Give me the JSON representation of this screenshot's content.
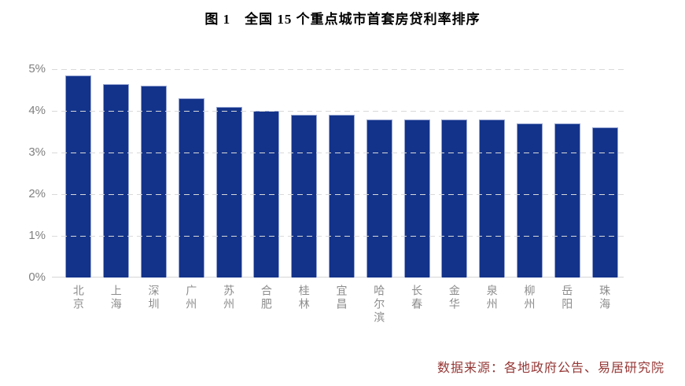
{
  "title": "图 1　全国 15 个重点城市首套房贷利率排序",
  "source_note": "数据来源：各地政府公告、易居研究院",
  "colors": {
    "bar_fill": "#13338a",
    "bar_border": "#96a5d2",
    "gridline": "#d9d9d9",
    "axis_text": "#808080",
    "title_text": "#000000",
    "source_text": "#953735"
  },
  "chart_data": {
    "type": "bar",
    "title": "图 1　全国 15 个重点城市首套房贷利率排序",
    "categories": [
      "北京",
      "上海",
      "深圳",
      "广州",
      "苏州",
      "合肥",
      "桂林",
      "宜昌",
      "哈尔滨",
      "长春",
      "金华",
      "泉州",
      "柳州",
      "岳阳",
      "珠海"
    ],
    "values": [
      4.85,
      4.65,
      4.6,
      4.3,
      4.1,
      4.0,
      3.9,
      3.9,
      3.8,
      3.8,
      3.8,
      3.8,
      3.7,
      3.7,
      3.6
    ],
    "unit": "%",
    "xlabel": "",
    "ylabel": "",
    "ylim": [
      0,
      5
    ],
    "yticks": [
      "0%",
      "1%",
      "2%",
      "3%",
      "4%",
      "5%"
    ],
    "grid": "horizontal-dashed",
    "legend": "none",
    "bar_orientation": "vertical",
    "source": "数据来源：各地政府公告、易居研究院"
  }
}
